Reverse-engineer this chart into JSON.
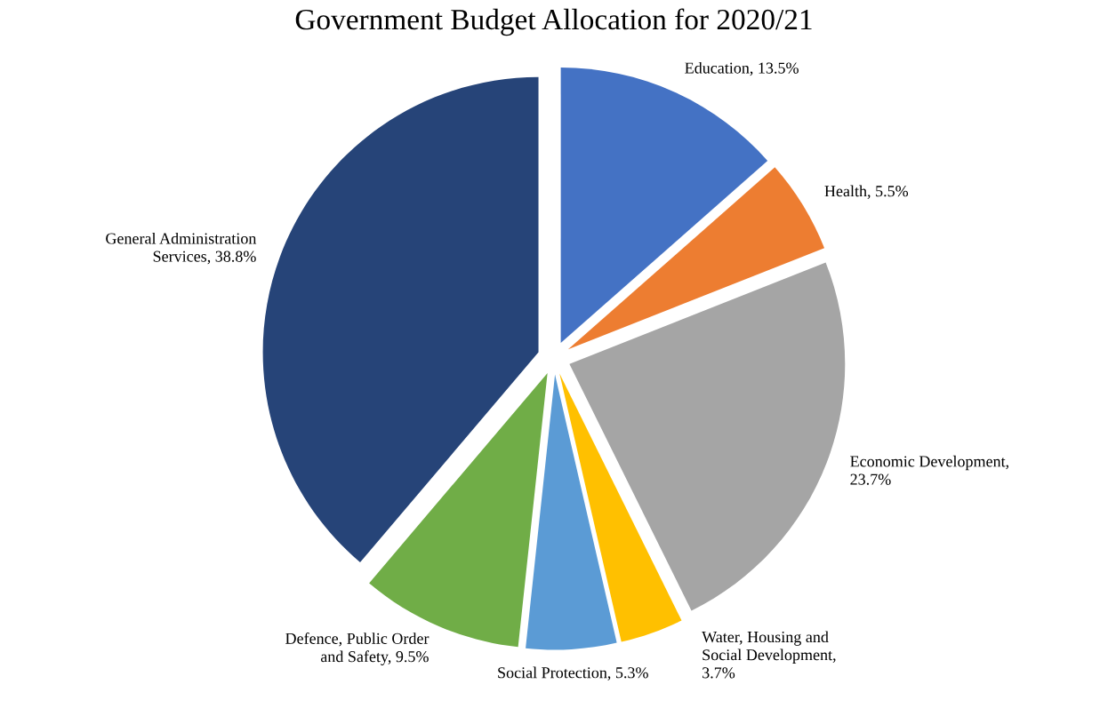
{
  "chart_data": {
    "type": "pie",
    "title": "Government Budget Allocation for 2020/21",
    "categories": [
      "Education",
      "Health",
      "Economic Development",
      "Water, Housing and Social Development",
      "Social Protection",
      "Defence, Public Order and Safety",
      "General Administration Services"
    ],
    "values": [
      13.5,
      5.5,
      23.7,
      3.7,
      5.3,
      9.5,
      38.8
    ],
    "colors": [
      "#4472c4",
      "#ed7d31",
      "#a5a5a5",
      "#ffc000",
      "#5b9bd5",
      "#70ad47",
      "#264478"
    ],
    "value_labels": [
      ", 13.5%",
      ", 5.5%",
      ", 23.7%",
      ", 3.7%",
      ", 5.3%",
      ", 9.5%",
      ", 38.8%"
    ],
    "legend": false
  }
}
